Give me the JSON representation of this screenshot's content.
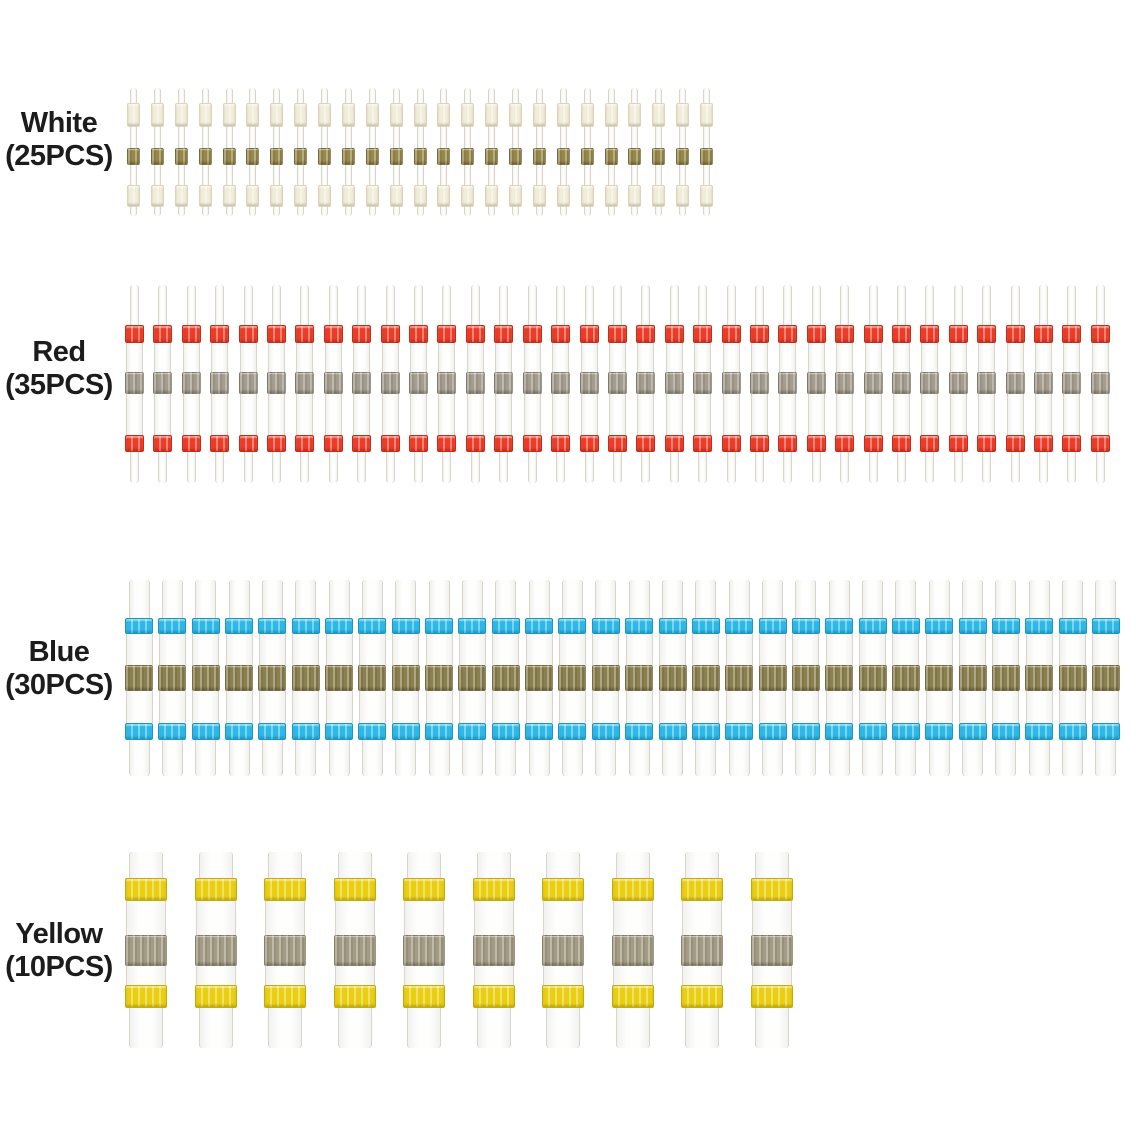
{
  "page": {
    "background": "#ffffff",
    "text_color": "#1c1c1c",
    "tube_outline_color": "#d9d5c9"
  },
  "rows": [
    {
      "id": "white",
      "name": "White",
      "count_label": "(25PCS)",
      "count": 25,
      "band_color": "#f2edda",
      "band_edge": "#ddd5b8",
      "solder_color": "#97884a"
    },
    {
      "id": "red",
      "name": "Red",
      "count_label": "(35PCS)",
      "count": 35,
      "band_color": "#ee3b27",
      "band_edge": "#cc2a16",
      "solder_color": "#a49c8e"
    },
    {
      "id": "blue",
      "name": "Blue",
      "count_label": "(30PCS)",
      "count": 30,
      "band_color": "#2cb9e8",
      "band_edge": "#179ac6",
      "solder_color": "#8a7f4e"
    },
    {
      "id": "yellow",
      "name": "Yellow",
      "count_label": "(10PCS)",
      "count": 10,
      "band_color": "#e9cf10",
      "band_edge": "#c6ac08",
      "solder_color": "#a39b84"
    }
  ]
}
